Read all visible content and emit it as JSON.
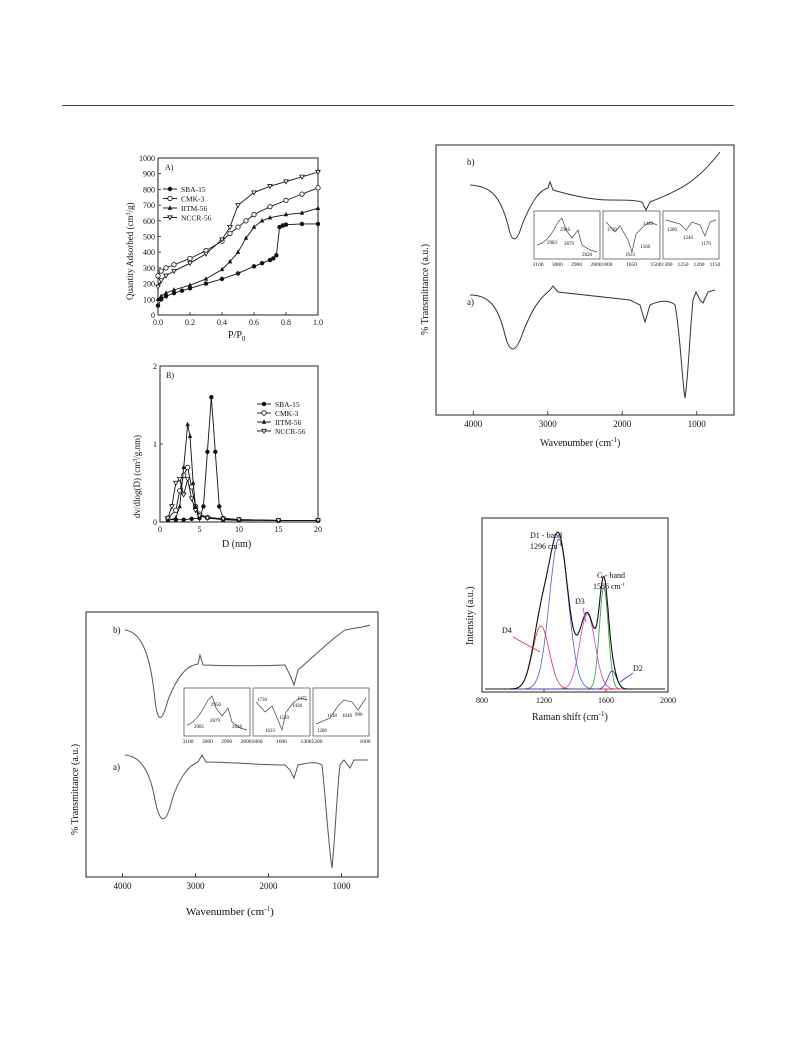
{
  "chart_data": [
    {
      "type": "line",
      "panel_label": "A)",
      "xlabel": "P/P",
      "xlabel_sub": "0",
      "ylabel": "Quantity Adsorbed (cm",
      "ylabel_sup": "3",
      "ylabel_tail": "/g)",
      "xlim": [
        0,
        1.0
      ],
      "ylim": [
        0,
        1000
      ],
      "xticks": [
        "0.0",
        "0.2",
        "0.4",
        "0.6",
        "0.8",
        "1.0"
      ],
      "yticks": [
        "0",
        "100",
        "200",
        "300",
        "400",
        "500",
        "600",
        "700",
        "800",
        "900",
        "1000"
      ],
      "legend_position": "upper-left",
      "series": [
        {
          "name": "SBA-15",
          "marker": "filled-circle",
          "x": [
            0.0,
            0.02,
            0.05,
            0.1,
            0.15,
            0.2,
            0.3,
            0.4,
            0.5,
            0.6,
            0.65,
            0.7,
            0.72,
            0.74,
            0.76,
            0.78,
            0.8,
            0.9,
            1.0
          ],
          "y": [
            60,
            100,
            120,
            140,
            155,
            170,
            200,
            230,
            265,
            310,
            330,
            350,
            360,
            380,
            560,
            570,
            575,
            580,
            580
          ]
        },
        {
          "name": "CMK-3",
          "marker": "open-circle",
          "x": [
            0.0,
            0.02,
            0.05,
            0.1,
            0.2,
            0.3,
            0.4,
            0.45,
            0.5,
            0.55,
            0.6,
            0.7,
            0.8,
            0.9,
            1.0
          ],
          "y": [
            250,
            280,
            300,
            320,
            360,
            410,
            470,
            520,
            560,
            600,
            640,
            690,
            730,
            770,
            810
          ]
        },
        {
          "name": "IITM-56",
          "marker": "filled-triangle",
          "x": [
            0.0,
            0.02,
            0.05,
            0.1,
            0.2,
            0.3,
            0.4,
            0.45,
            0.5,
            0.55,
            0.6,
            0.65,
            0.7,
            0.8,
            0.9,
            1.0
          ],
          "y": [
            100,
            120,
            140,
            160,
            190,
            230,
            290,
            340,
            400,
            490,
            560,
            600,
            620,
            640,
            650,
            680
          ]
        },
        {
          "name": "NCCR-56",
          "marker": "open-triangle",
          "x": [
            0.0,
            0.02,
            0.05,
            0.1,
            0.2,
            0.3,
            0.4,
            0.45,
            0.5,
            0.6,
            0.7,
            0.8,
            0.9,
            1.0
          ],
          "y": [
            180,
            220,
            250,
            280,
            330,
            390,
            480,
            560,
            700,
            780,
            820,
            850,
            880,
            910
          ]
        }
      ]
    },
    {
      "type": "line",
      "panel_label": "B)",
      "xlabel": "D (nm)",
      "ylabel": "dv/dlog(D) (cm",
      "ylabel_sup": "3",
      "ylabel_tail": "/g.nm)",
      "xlim": [
        0,
        20
      ],
      "ylim": [
        0,
        2
      ],
      "xticks": [
        "0",
        "5",
        "10",
        "15",
        "20"
      ],
      "yticks": [
        "0",
        "1",
        "2"
      ],
      "legend_position": "right",
      "series": [
        {
          "name": "SBA-15",
          "marker": "filled-circle",
          "x": [
            1,
            2,
            3,
            4,
            5,
            5.5,
            6,
            6.5,
            7,
            7.5,
            8,
            10,
            15,
            20
          ],
          "y": [
            0.03,
            0.03,
            0.03,
            0.04,
            0.05,
            0.2,
            0.9,
            1.6,
            0.9,
            0.2,
            0.05,
            0.03,
            0.02,
            0.02
          ]
        },
        {
          "name": "CMK-3",
          "marker": "open-circle",
          "x": [
            1,
            2,
            2.5,
            3,
            3.5,
            4,
            4.5,
            5,
            6,
            8,
            10,
            15,
            20
          ],
          "y": [
            0.05,
            0.15,
            0.4,
            0.6,
            0.7,
            0.45,
            0.2,
            0.1,
            0.06,
            0.04,
            0.03,
            0.02,
            0.02
          ]
        },
        {
          "name": "IITM-56",
          "marker": "filled-triangle",
          "x": [
            1,
            2,
            2.5,
            3,
            3.5,
            3.8,
            4.2,
            4.5,
            5,
            6,
            8,
            10,
            15,
            20
          ],
          "y": [
            0.02,
            0.05,
            0.2,
            0.7,
            1.25,
            1.1,
            0.5,
            0.2,
            0.08,
            0.05,
            0.03,
            0.02,
            0.02,
            0.02
          ]
        },
        {
          "name": "NCCR-56",
          "marker": "open-triangle",
          "x": [
            1,
            1.5,
            2,
            2.5,
            3,
            3.5,
            4,
            4.5,
            5,
            6,
            8,
            10,
            15,
            20
          ],
          "y": [
            0.05,
            0.2,
            0.5,
            0.55,
            0.35,
            0.55,
            0.3,
            0.15,
            0.08,
            0.05,
            0.04,
            0.03,
            0.02,
            0.02
          ]
        }
      ]
    },
    {
      "type": "line",
      "xlabel": "Wavenumber (cm",
      "xlabel_sup": "-1",
      "xlabel_tail": ")",
      "ylabel": "% Transmittance (a.u.)",
      "xlim": [
        4500,
        500
      ],
      "xticks": [
        "4000",
        "3000",
        "2000",
        "1000"
      ],
      "series_labels": [
        "b)",
        "a)"
      ],
      "inset_ticks": [
        [
          "3100",
          "3000",
          "2900",
          "2800"
        ],
        [
          "1800",
          "1650",
          "1500"
        ],
        [
          "1300",
          "1250",
          "1200",
          "1150"
        ]
      ],
      "inset_annotations": [
        [
          "2946",
          "2983",
          "2879",
          "2828"
        ],
        [
          "1730",
          "1440",
          "1568",
          "1633"
        ],
        [
          "1280",
          "1240",
          "1170"
        ]
      ]
    },
    {
      "type": "line",
      "xlabel": "Wavenumber (cm",
      "xlabel_sup": "-1",
      "xlabel_tail": ")",
      "ylabel": "% Transmittance (a.u.)",
      "xlim": [
        4500,
        500
      ],
      "xticks": [
        "4000",
        "3000",
        "2000",
        "1000"
      ],
      "series_labels": [
        "b)",
        "a)"
      ],
      "inset_ticks": [
        [
          "3100",
          "3000",
          "2900",
          "2800"
        ],
        [
          "1800",
          "1600",
          "1400"
        ],
        [
          "1200",
          "1000"
        ]
      ],
      "inset_annotations": [
        [
          "2950",
          "2985",
          "2879",
          "2828"
        ],
        [
          "1730",
          "1520",
          "1633",
          "1438",
          "1375"
        ],
        [
          "1280",
          "1138",
          "1040",
          "990"
        ]
      ]
    },
    {
      "type": "line",
      "xlabel": "Raman shift (cm",
      "xlabel_sup": "-1",
      "xlabel_tail": ")",
      "ylabel": "Intensity (a.u.)",
      "xlim": [
        800,
        2000
      ],
      "xticks": [
        "800",
        "1200",
        "1600",
        "2000"
      ],
      "annotations": {
        "d1_line1": "D1 - band",
        "d1_line2": "1296 cm",
        "d1_sup": "-1",
        "g_line1": "G - band",
        "g_line2": "1586 cm",
        "g_sup": "-1",
        "d3": "D3",
        "d4": "D4",
        "d2": "D2"
      },
      "series": [
        {
          "name": "D1",
          "center": 1296,
          "amp": 1.0,
          "width": 85,
          "color": "#4a5fd0"
        },
        {
          "name": "G",
          "center": 1586,
          "amp": 0.68,
          "width": 40,
          "color": "#2e9a2e"
        },
        {
          "name": "D3",
          "center": 1480,
          "amp": 0.5,
          "width": 70,
          "color": "#d040d0"
        },
        {
          "name": "D4",
          "center": 1180,
          "amp": 0.42,
          "width": 75,
          "color": "#e03040"
        },
        {
          "name": "D2",
          "center": 1640,
          "amp": 0.12,
          "width": 40,
          "color": "#2a3ab0"
        }
      ]
    }
  ]
}
